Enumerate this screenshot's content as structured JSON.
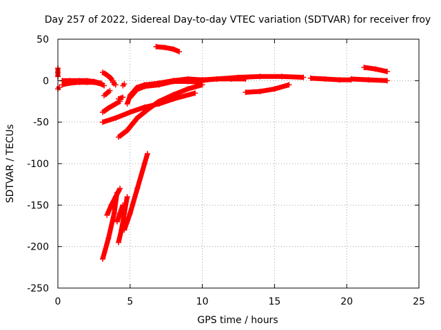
{
  "chart_data": {
    "type": "scatter",
    "title": "Day 257 of 2022, Sidereal Day-to-day VTEC variation (SDTVAR) for receiver froy",
    "xlabel": "GPS time / hours",
    "ylabel": "SDTVAR / TECUs",
    "xlim": [
      0,
      25
    ],
    "ylim": [
      -250,
      50
    ],
    "xticks": [
      0,
      5,
      10,
      15,
      20,
      25
    ],
    "yticks": [
      -250,
      -200,
      -150,
      -100,
      -50,
      0,
      50
    ],
    "xtick_labels": [
      "0",
      "5",
      "10",
      "15",
      "20",
      "25"
    ],
    "ytick_labels": [
      "-250",
      "-200",
      "-150",
      "-100",
      "-50",
      "0",
      "50"
    ],
    "grid": true,
    "legend": "none",
    "marker": "plus",
    "color": "#ff0000",
    "tracks": [
      {
        "x": [
          0.0,
          0.0,
          0.0
        ],
        "y": [
          15,
          10,
          5
        ]
      },
      {
        "x": [
          0.0,
          0.1
        ],
        "y": [
          -10,
          -8
        ]
      },
      {
        "x": [
          0.3,
          0.8,
          1.5,
          2.0,
          2.5,
          3.0,
          3.2
        ],
        "y": [
          -5,
          -3,
          -2,
          -2,
          -2,
          -4,
          -6
        ]
      },
      {
        "x": [
          0.3,
          0.8,
          1.5,
          2.0,
          2.5,
          3.0
        ],
        "y": [
          0,
          0,
          0,
          0,
          -1,
          -3
        ]
      },
      {
        "x": [
          3.1,
          3.3,
          3.6,
          3.8
        ],
        "y": [
          10,
          8,
          4,
          0
        ]
      },
      {
        "x": [
          3.2,
          3.4,
          3.6
        ],
        "y": [
          -18,
          -15,
          -12
        ]
      },
      {
        "x": [
          3.8,
          4.0
        ],
        "y": [
          -2,
          -5
        ]
      },
      {
        "x": [
          4.2,
          4.5
        ],
        "y": [
          -22,
          -20
        ]
      },
      {
        "x": [
          4.5,
          4.6
        ],
        "y": [
          -6,
          -4
        ]
      },
      {
        "x": [
          3.1,
          3.5,
          4.0,
          4.3
        ],
        "y": [
          -38,
          -33,
          -28,
          -25
        ]
      },
      {
        "x": [
          3.1,
          4.0,
          5.0,
          6.0,
          7.0,
          8.0,
          9.5
        ],
        "y": [
          -50,
          -45,
          -38,
          -32,
          -28,
          -22,
          -15
        ]
      },
      {
        "x": [
          4.2,
          4.8,
          5.5,
          6.2,
          7.0,
          8.0,
          9.0,
          10.0
        ],
        "y": [
          -68,
          -60,
          -45,
          -35,
          -25,
          -17,
          -10,
          -5
        ]
      },
      {
        "x": [
          4.8,
          5.0,
          5.5,
          6.0,
          7.0,
          8.0,
          9.0,
          10.0
        ],
        "y": [
          -28,
          -18,
          -8,
          -5,
          -3,
          0,
          0,
          0
        ]
      },
      {
        "x": [
          5.0,
          5.5,
          6.0,
          7.0,
          8.0,
          9.0,
          10.0
        ],
        "y": [
          -20,
          -10,
          -6,
          -3,
          0,
          2,
          1
        ]
      },
      {
        "x": [
          5.3,
          6.0,
          7.0,
          8.0,
          9.0,
          10.0
        ],
        "y": [
          -12,
          -7,
          -5,
          -1,
          -1,
          -2
        ]
      },
      {
        "x": [
          6.8,
          7.4,
          8.0,
          8.4
        ],
        "y": [
          41,
          40,
          38,
          35
        ]
      },
      {
        "x": [
          9.8,
          11.0,
          12.5,
          14.0,
          15.5,
          17.0
        ],
        "y": [
          0,
          2,
          4,
          5,
          5,
          4
        ]
      },
      {
        "x": [
          10.0,
          11.0,
          12.0,
          13.0
        ],
        "y": [
          1,
          2,
          2,
          2
        ]
      },
      {
        "x": [
          13.0,
          14.0,
          15.0,
          16.0
        ],
        "y": [
          -14,
          -13,
          -10,
          -5
        ]
      },
      {
        "x": [
          17.5,
          18.5,
          19.5,
          20.3
        ],
        "y": [
          3,
          2,
          1,
          1
        ]
      },
      {
        "x": [
          20.3,
          21.5,
          22.8
        ],
        "y": [
          2,
          1,
          0
        ]
      },
      {
        "x": [
          21.2,
          22.0,
          22.8
        ],
        "y": [
          16,
          14,
          11
        ]
      },
      {
        "x": [
          3.1,
          3.5,
          3.9,
          4.1
        ],
        "y": [
          -215,
          -190,
          -160,
          -135
        ]
      },
      {
        "x": [
          3.4,
          3.7,
          4.0,
          4.3
        ],
        "y": [
          -162,
          -150,
          -140,
          -130
        ]
      },
      {
        "x": [
          4.1,
          4.3,
          4.5
        ],
        "y": [
          -170,
          -160,
          -150
        ]
      },
      {
        "x": [
          4.2,
          4.4,
          4.6,
          4.8
        ],
        "y": [
          -195,
          -180,
          -160,
          -140
        ]
      },
      {
        "x": [
          4.6,
          5.0,
          5.5,
          6.0,
          6.2
        ],
        "y": [
          -180,
          -160,
          -130,
          -100,
          -88
        ]
      }
    ]
  }
}
